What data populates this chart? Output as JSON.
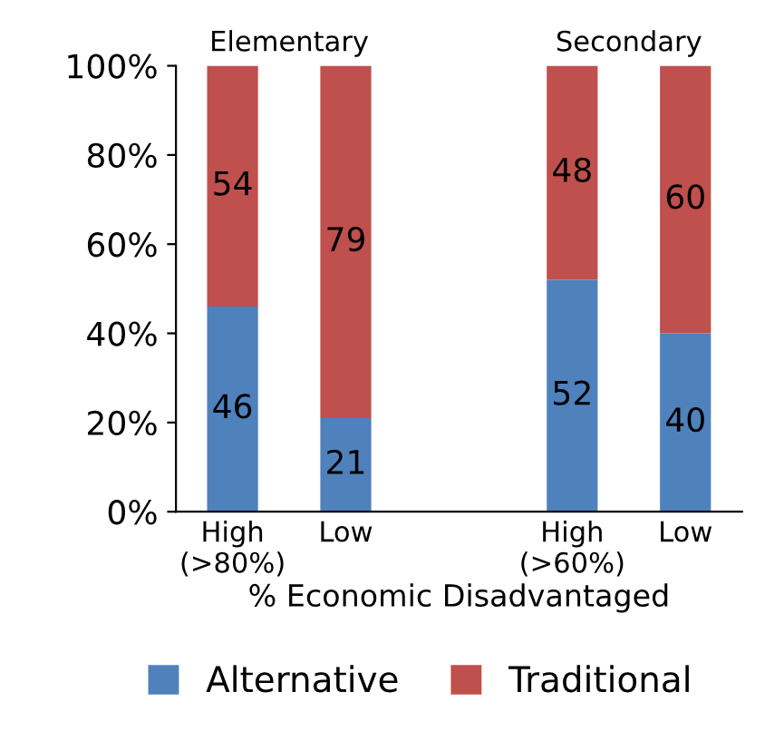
{
  "chart_data": {
    "type": "bar",
    "stacked": true,
    "categories": [
      "High\n(>80%)",
      "Low",
      null,
      "High\n(>60%)",
      "Low"
    ],
    "series": [
      {
        "name": "Alternative",
        "color": "#4f81bd",
        "values": [
          46,
          21,
          null,
          52,
          40
        ]
      },
      {
        "name": "Traditional",
        "color": "#c0504d",
        "values": [
          54,
          79,
          null,
          48,
          60
        ]
      }
    ],
    "annotations": [
      "Elementary",
      "Secondary"
    ],
    "xlabel": "% Economic Disadvantaged",
    "ylim": [
      0,
      100
    ],
    "yticks": [
      {
        "value": 0,
        "label": "0%"
      },
      {
        "value": 20,
        "label": "20%"
      },
      {
        "value": 40,
        "label": "40%"
      },
      {
        "value": 60,
        "label": "60%"
      },
      {
        "value": 80,
        "label": "80%"
      },
      {
        "value": 100,
        "label": "100%"
      }
    ],
    "data_labels": true,
    "legend": "bottom",
    "grid": false
  }
}
